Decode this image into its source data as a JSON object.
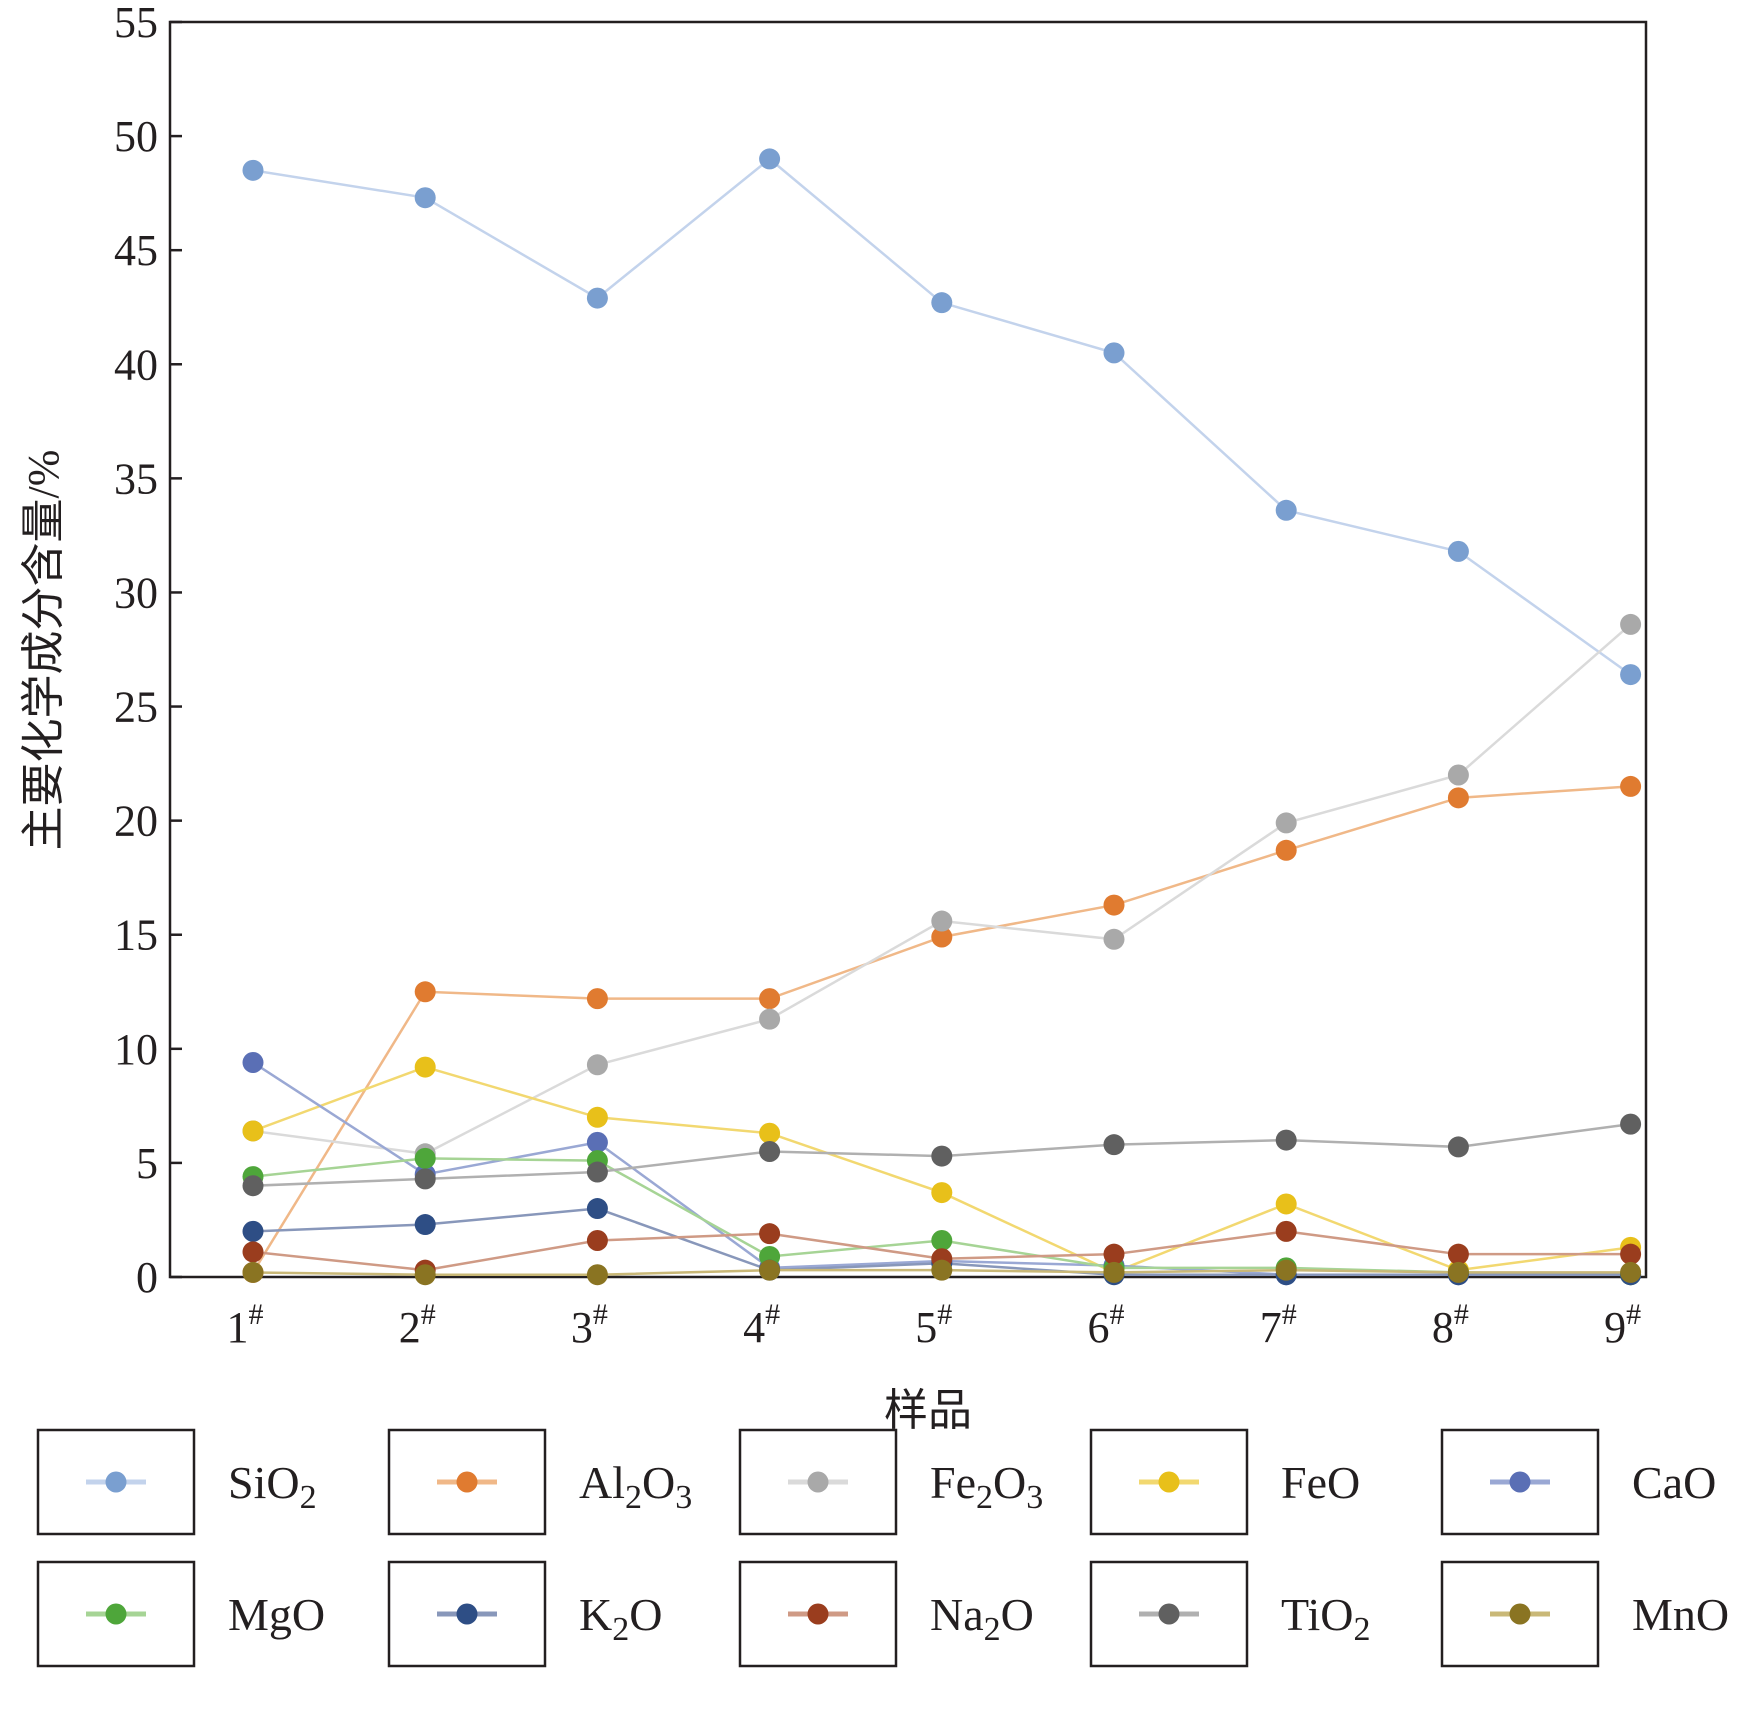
{
  "chart_data": {
    "type": "line",
    "ylabel": "主要化学成分含量/%",
    "xlabel": "样品",
    "ylim": [
      0,
      55
    ],
    "yticks": [
      "0",
      "5",
      "10",
      "15",
      "20",
      "25",
      "30",
      "35",
      "40",
      "45",
      "50",
      "55"
    ],
    "categories": [
      "1",
      "2",
      "3",
      "4",
      "5",
      "6",
      "7",
      "8",
      "9"
    ],
    "category_suffix": "#",
    "legend": "bottom",
    "series": [
      {
        "name": "SiO",
        "sub": "2",
        "post": "",
        "color": "#7a9fd0",
        "line": "#c3d3ec",
        "values": [
          48.5,
          47.3,
          42.9,
          49.0,
          42.7,
          40.5,
          33.6,
          31.8,
          26.4
        ]
      },
      {
        "name": "Al",
        "sub": "2",
        "post": "O",
        "sub2": "3",
        "color": "#e07b30",
        "line": "#f0b888",
        "values": [
          0.2,
          12.5,
          12.2,
          12.2,
          14.9,
          16.3,
          18.7,
          21.0,
          21.5
        ]
      },
      {
        "name": "Fe",
        "sub": "2",
        "post": "O",
        "sub2": "3",
        "color": "#a9a9a9",
        "line": "#dadada",
        "values": [
          6.4,
          5.4,
          9.3,
          11.3,
          15.6,
          14.8,
          19.9,
          22.0,
          28.6
        ]
      },
      {
        "name": "FeO",
        "sub": "",
        "post": "",
        "color": "#e8c01a",
        "line": "#f2d870",
        "values": [
          6.4,
          9.2,
          7.0,
          6.3,
          3.7,
          0.2,
          3.2,
          0.3,
          1.3
        ]
      },
      {
        "name": "CaO",
        "sub": "",
        "post": "",
        "color": "#5a6fb5",
        "line": "#9aa8d4",
        "values": [
          9.4,
          4.5,
          5.9,
          0.4,
          0.7,
          0.5,
          0.1,
          0.1,
          0.1
        ]
      },
      {
        "name": "MgO",
        "sub": "",
        "post": "",
        "color": "#4ea63a",
        "line": "#a6d495",
        "values": [
          4.4,
          5.2,
          5.1,
          0.9,
          1.6,
          0.4,
          0.4,
          0.2,
          0.1
        ]
      },
      {
        "name": "K",
        "sub": "2",
        "post": "O",
        "color": "#2e4e85",
        "line": "#8897ba",
        "values": [
          2.0,
          2.3,
          3.0,
          0.3,
          0.6,
          0.1,
          0.1,
          0.1,
          0.1
        ]
      },
      {
        "name": "Na",
        "sub": "2",
        "post": "O",
        "color": "#9a3d1e",
        "line": "#cf9a85",
        "values": [
          1.1,
          0.3,
          1.6,
          1.9,
          0.8,
          1.0,
          2.0,
          1.0,
          1.0
        ]
      },
      {
        "name": "TiO",
        "sub": "2",
        "post": "",
        "color": "#606060",
        "line": "#b0b0b0",
        "values": [
          4.0,
          4.3,
          4.6,
          5.5,
          5.3,
          5.8,
          6.0,
          5.7,
          6.7
        ]
      },
      {
        "name": "MnO",
        "sub": "",
        "post": "",
        "color": "#8a7422",
        "line": "#c9b877",
        "values": [
          0.2,
          0.1,
          0.1,
          0.3,
          0.3,
          0.2,
          0.3,
          0.2,
          0.2
        ]
      }
    ]
  }
}
